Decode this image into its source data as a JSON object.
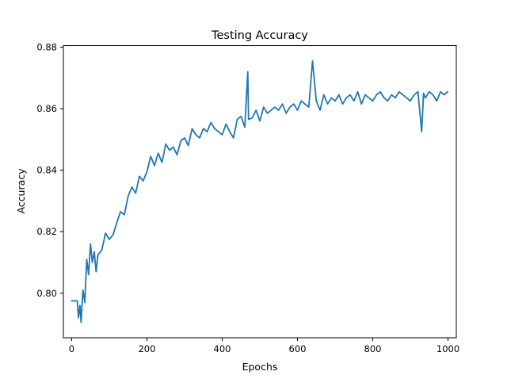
{
  "chart_data": {
    "type": "line",
    "title": "Testing Accuracy",
    "xlabel": "Epochs",
    "ylabel": "Accuracy",
    "xlim": [
      -22,
      1022
    ],
    "ylim": [
      0.7855,
      0.8805
    ],
    "xticks": [
      0,
      200,
      400,
      600,
      800,
      1000
    ],
    "yticks": [
      0.8,
      0.82,
      0.84,
      0.86,
      0.88
    ],
    "xtick_labels": [
      "0",
      "200",
      "400",
      "600",
      "800",
      "1000"
    ],
    "ytick_labels": [
      "0.80",
      "0.82",
      "0.84",
      "0.86",
      "0.88"
    ],
    "grid": false,
    "legend": "none",
    "series": [
      {
        "color": "#1f77b4",
        "x": [
          0,
          10,
          15,
          18,
          22,
          25,
          30,
          35,
          40,
          45,
          50,
          55,
          60,
          65,
          70,
          80,
          90,
          100,
          110,
          120,
          130,
          140,
          150,
          160,
          170,
          180,
          190,
          200,
          210,
          220,
          230,
          240,
          250,
          260,
          270,
          280,
          290,
          300,
          310,
          320,
          330,
          340,
          350,
          360,
          370,
          380,
          390,
          400,
          410,
          420,
          430,
          440,
          450,
          460,
          468,
          470,
          480,
          490,
          500,
          510,
          520,
          530,
          540,
          550,
          560,
          570,
          580,
          590,
          600,
          610,
          620,
          630,
          640,
          650,
          660,
          670,
          680,
          690,
          700,
          710,
          720,
          730,
          740,
          750,
          760,
          770,
          780,
          790,
          800,
          810,
          820,
          830,
          840,
          850,
          860,
          870,
          880,
          890,
          900,
          910,
          920,
          930,
          935,
          940,
          950,
          960,
          970,
          980,
          990,
          999
        ],
        "y": [
          0.7975,
          0.7975,
          0.7975,
          0.792,
          0.796,
          0.7905,
          0.801,
          0.797,
          0.811,
          0.806,
          0.816,
          0.81,
          0.8135,
          0.807,
          0.8125,
          0.814,
          0.8195,
          0.8175,
          0.819,
          0.823,
          0.8265,
          0.8255,
          0.8315,
          0.8345,
          0.8325,
          0.838,
          0.8365,
          0.8395,
          0.8445,
          0.8415,
          0.8455,
          0.8425,
          0.8485,
          0.8465,
          0.8475,
          0.845,
          0.8495,
          0.8505,
          0.848,
          0.8535,
          0.8515,
          0.8505,
          0.8535,
          0.8525,
          0.8555,
          0.8535,
          0.8525,
          0.8515,
          0.855,
          0.8525,
          0.8505,
          0.8565,
          0.8575,
          0.854,
          0.872,
          0.8565,
          0.857,
          0.8595,
          0.856,
          0.8605,
          0.8585,
          0.8595,
          0.8605,
          0.8595,
          0.8615,
          0.8585,
          0.8605,
          0.8615,
          0.8595,
          0.8625,
          0.8615,
          0.8605,
          0.8755,
          0.8625,
          0.8595,
          0.8645,
          0.8615,
          0.8635,
          0.8625,
          0.8645,
          0.8615,
          0.8635,
          0.8645,
          0.8625,
          0.8655,
          0.8615,
          0.8645,
          0.8635,
          0.8625,
          0.8645,
          0.8655,
          0.8635,
          0.8625,
          0.8645,
          0.8635,
          0.8655,
          0.8645,
          0.8635,
          0.8625,
          0.8645,
          0.8655,
          0.8525,
          0.865,
          0.8635,
          0.8655,
          0.8645,
          0.8625,
          0.8655,
          0.8645,
          0.8655
        ]
      }
    ]
  }
}
